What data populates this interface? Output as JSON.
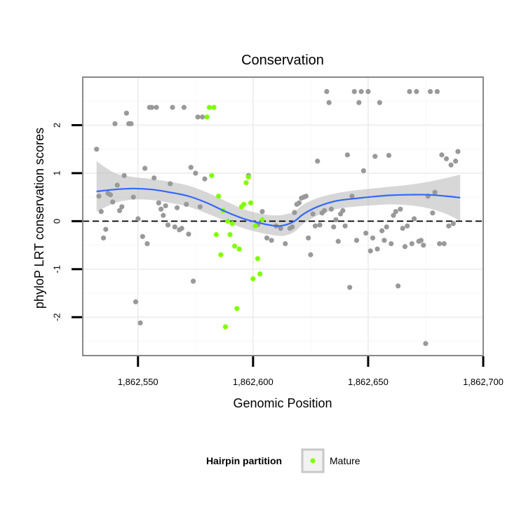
{
  "chart_data": {
    "type": "scatter",
    "title": "Conservation",
    "xlabel": "Genomic Position",
    "ylabel": "phyloP LRT conservation scores",
    "xlim": [
      1862526,
      1862700
    ],
    "ylim": [
      -2.8,
      3.0
    ],
    "xticks": [
      1862550,
      1862600,
      1862650,
      1862700
    ],
    "xtick_labels": [
      "1,862,550",
      "1,862,600",
      "1,862,650",
      "1,862,700"
    ],
    "yticks": [
      -2,
      -1,
      0,
      1,
      2
    ],
    "ytick_labels": [
      "-2",
      "-1",
      "0",
      "1",
      "2"
    ],
    "reference_line": {
      "y": 0,
      "style": "dashed"
    },
    "legend": {
      "title": "Hairpin partition",
      "placement": "bottom",
      "entries": [
        {
          "label": "Mature",
          "color": "#7fff00"
        }
      ]
    },
    "colors": {
      "other": "#999999",
      "mature": "#7fff00",
      "smooth": "#3366ff",
      "band": "#bdbdbd",
      "panel_border": "#888888",
      "grid": "#f0f0f0"
    },
    "series": [
      {
        "name": "Other",
        "points": [
          [
            1862532,
            1.5
          ],
          [
            1862533,
            0.52
          ],
          [
            1862534,
            0.2
          ],
          [
            1862535,
            -0.35
          ],
          [
            1862536,
            -0.17
          ],
          [
            1862537,
            0.58
          ],
          [
            1862538,
            0.55
          ],
          [
            1862539,
            0.4
          ],
          [
            1862540,
            2.03
          ],
          [
            1862541,
            0.75
          ],
          [
            1862542,
            0.22
          ],
          [
            1862543,
            0.3
          ],
          [
            1862544,
            0.95
          ],
          [
            1862545,
            2.25
          ],
          [
            1862546,
            2.03
          ],
          [
            1862547,
            2.03
          ],
          [
            1862548,
            0.5
          ],
          [
            1862549,
            -1.68
          ],
          [
            1862550,
            0.05
          ],
          [
            1862551,
            -2.12
          ],
          [
            1862552,
            -0.32
          ],
          [
            1862553,
            1.1
          ],
          [
            1862554,
            -0.47
          ],
          [
            1862555,
            2.37
          ],
          [
            1862556,
            2.37
          ],
          [
            1862557,
            0.9
          ],
          [
            1862558,
            2.37
          ],
          [
            1862559,
            0.38
          ],
          [
            1862560,
            0.25
          ],
          [
            1862561,
            0.12
          ],
          [
            1862562,
            0.32
          ],
          [
            1862563,
            -0.08
          ],
          [
            1862564,
            0.78
          ],
          [
            1862565,
            2.37
          ],
          [
            1862566,
            -0.12
          ],
          [
            1862567,
            0.28
          ],
          [
            1862568,
            -0.18
          ],
          [
            1862569,
            -0.15
          ],
          [
            1862570,
            2.37
          ],
          [
            1862571,
            0.35
          ],
          [
            1862572,
            -0.27
          ],
          [
            1862573,
            1.12
          ],
          [
            1862574,
            -1.25
          ],
          [
            1862575,
            1.0
          ],
          [
            1862576,
            2.17
          ],
          [
            1862577,
            0.3
          ],
          [
            1862578,
            2.17
          ],
          [
            1862579,
            0.88
          ],
          [
            1862598,
            0.95
          ],
          [
            1862602,
            -0.07
          ],
          [
            1862604,
            0.2
          ],
          [
            1862606,
            -0.35
          ],
          [
            1862608,
            -0.4
          ],
          [
            1862610,
            -0.1
          ],
          [
            1862612,
            -0.15
          ],
          [
            1862614,
            -0.47
          ],
          [
            1862616,
            -0.15
          ],
          [
            1862617,
            -0.12
          ],
          [
            1862618,
            0.18
          ],
          [
            1862619,
            0.35
          ],
          [
            1862620,
            0.38
          ],
          [
            1862621,
            0.48
          ],
          [
            1862622,
            0.5
          ],
          [
            1862623,
            0.52
          ],
          [
            1862624,
            -0.35
          ],
          [
            1862625,
            -0.7
          ],
          [
            1862626,
            0.15
          ],
          [
            1862627,
            -0.1
          ],
          [
            1862628,
            1.25
          ],
          [
            1862629,
            -0.08
          ],
          [
            1862630,
            0.17
          ],
          [
            1862631,
            0.22
          ],
          [
            1862632,
            2.7
          ],
          [
            1862633,
            2.47
          ],
          [
            1862634,
            0.25
          ],
          [
            1862635,
            -0.12
          ],
          [
            1862636,
            0.03
          ],
          [
            1862637,
            -0.42
          ],
          [
            1862638,
            0.15
          ],
          [
            1862639,
            0.22
          ],
          [
            1862640,
            -0.1
          ],
          [
            1862641,
            1.38
          ],
          [
            1862642,
            -1.38
          ],
          [
            1862643,
            0.52
          ],
          [
            1862644,
            2.7
          ],
          [
            1862645,
            -0.4
          ],
          [
            1862646,
            2.47
          ],
          [
            1862647,
            2.7
          ],
          [
            1862648,
            1.05
          ],
          [
            1862649,
            -0.25
          ],
          [
            1862650,
            2.7
          ],
          [
            1862651,
            -0.62
          ],
          [
            1862652,
            -0.35
          ],
          [
            1862653,
            1.35
          ],
          [
            1862654,
            -0.58
          ],
          [
            1862655,
            2.47
          ],
          [
            1862656,
            -0.2
          ],
          [
            1862657,
            -0.4
          ],
          [
            1862658,
            -0.12
          ],
          [
            1862659,
            1.37
          ],
          [
            1862660,
            -0.47
          ],
          [
            1862661,
            0.12
          ],
          [
            1862662,
            0.2
          ],
          [
            1862663,
            -1.35
          ],
          [
            1862664,
            0.25
          ],
          [
            1862665,
            -0.15
          ],
          [
            1862666,
            -0.53
          ],
          [
            1862667,
            -0.1
          ],
          [
            1862668,
            2.7
          ],
          [
            1862669,
            -0.47
          ],
          [
            1862670,
            0.05
          ],
          [
            1862671,
            2.7
          ],
          [
            1862672,
            -0.42
          ],
          [
            1862673,
            -0.4
          ],
          [
            1862674,
            -0.5
          ],
          [
            1862675,
            -2.55
          ],
          [
            1862676,
            0.52
          ],
          [
            1862677,
            2.7
          ],
          [
            1862678,
            0.17
          ],
          [
            1862679,
            0.6
          ],
          [
            1862680,
            2.7
          ],
          [
            1862681,
            -0.47
          ],
          [
            1862682,
            1.38
          ],
          [
            1862683,
            -0.47
          ],
          [
            1862684,
            1.3
          ],
          [
            1862685,
            -0.1
          ],
          [
            1862686,
            1.17
          ],
          [
            1862687,
            -0.05
          ],
          [
            1862688,
            1.25
          ],
          [
            1862689,
            1.45
          ]
        ]
      },
      {
        "name": "Mature",
        "points": [
          [
            1862580,
            2.17
          ],
          [
            1862581,
            2.37
          ],
          [
            1862582,
            0.95
          ],
          [
            1862583,
            2.37
          ],
          [
            1862584,
            -0.28
          ],
          [
            1862585,
            0.52
          ],
          [
            1862586,
            -0.7
          ],
          [
            1862587,
            0.22
          ],
          [
            1862588,
            -2.2
          ],
          [
            1862589,
            0.0
          ],
          [
            1862590,
            -0.28
          ],
          [
            1862591,
            -0.05
          ],
          [
            1862592,
            -0.52
          ],
          [
            1862593,
            -1.82
          ],
          [
            1862594,
            -0.58
          ],
          [
            1862595,
            0.3
          ],
          [
            1862596,
            0.35
          ],
          [
            1862597,
            0.8
          ],
          [
            1862598,
            0.92
          ],
          [
            1862599,
            0.38
          ],
          [
            1862600,
            -1.2
          ],
          [
            1862601,
            -0.1
          ],
          [
            1862602,
            -0.78
          ],
          [
            1862603,
            -1.1
          ],
          [
            1862604,
            0.03
          ]
        ]
      }
    ],
    "smooth": {
      "x": [
        1862532,
        1862540,
        1862548,
        1862556,
        1862564,
        1862572,
        1862580,
        1862588,
        1862596,
        1862604,
        1862610,
        1862614,
        1862618,
        1862622,
        1862628,
        1862636,
        1862644,
        1862652,
        1862660,
        1862668,
        1862676,
        1862684,
        1862690
      ],
      "y": [
        0.62,
        0.66,
        0.68,
        0.66,
        0.6,
        0.52,
        0.38,
        0.2,
        0.05,
        -0.05,
        -0.1,
        -0.08,
        0.0,
        0.15,
        0.3,
        0.42,
        0.47,
        0.51,
        0.54,
        0.55,
        0.55,
        0.52,
        0.49
      ],
      "lower": [
        0.2,
        0.38,
        0.45,
        0.44,
        0.38,
        0.3,
        0.16,
        0.0,
        -0.15,
        -0.25,
        -0.3,
        -0.3,
        -0.22,
        -0.05,
        0.12,
        0.25,
        0.3,
        0.33,
        0.35,
        0.33,
        0.27,
        0.15,
        0.0
      ],
      "upper": [
        1.25,
        1.0,
        0.92,
        0.88,
        0.82,
        0.74,
        0.6,
        0.42,
        0.25,
        0.15,
        0.12,
        0.14,
        0.2,
        0.35,
        0.48,
        0.58,
        0.64,
        0.68,
        0.72,
        0.76,
        0.82,
        0.9,
        0.97
      ]
    }
  }
}
